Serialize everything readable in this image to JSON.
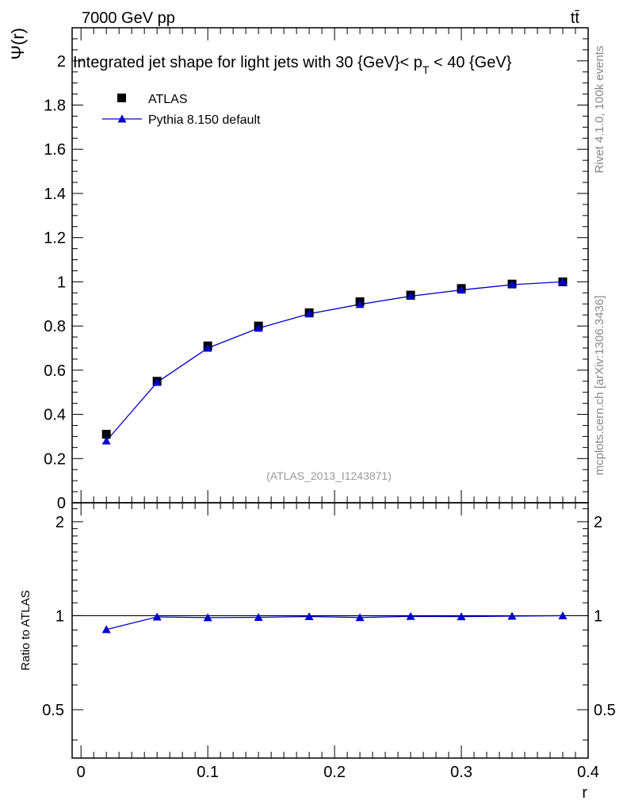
{
  "header": {
    "energy_label": "7000 GeV pp",
    "process_label": "tt̄",
    "side_label_top": "Rivet 4.1.0,  100k events",
    "side_label_bottom": "mcplots.cern.ch [arXiv:1306.3436]"
  },
  "chart_data": [
    {
      "type": "scatter",
      "title": "Integrated jet shape for light jets with 30 {GeV}< p_T < 40 {GeV}",
      "title_main": "Integrated jet shape for light jets with 30 {GeV}< p",
      "title_sub": "T",
      "title_tail": " < 40 {GeV}",
      "ylabel": "Ψ(r)",
      "xlabel": "r",
      "xlim": [
        -0.007,
        0.4
      ],
      "ylim": [
        0,
        2.15
      ],
      "x_ticks": [
        0,
        0.1,
        0.2,
        0.3,
        0.4
      ],
      "x_tick_labels": [
        "0",
        "0.1",
        "0.2",
        "0.3",
        "0.4"
      ],
      "y_ticks": [
        0,
        0.2,
        0.4,
        0.6,
        0.8,
        1,
        1.2,
        1.4,
        1.6,
        1.8,
        2
      ],
      "y_tick_labels": [
        "0",
        "0.2",
        "0.4",
        "0.6",
        "0.8",
        "1",
        "1.2",
        "1.4",
        "1.6",
        "1.8",
        "2"
      ],
      "watermark": "(ATLAS_2013_I1243871)",
      "legend_position": "top-left",
      "series": [
        {
          "name": "ATLAS",
          "marker": "square",
          "color": "#000000",
          "x": [
            0.02,
            0.06,
            0.1,
            0.14,
            0.18,
            0.22,
            0.26,
            0.3,
            0.34,
            0.38
          ],
          "values": [
            0.31,
            0.55,
            0.71,
            0.8,
            0.86,
            0.91,
            0.94,
            0.97,
            0.99,
            1.0
          ]
        },
        {
          "name": "Pythia 8.150 default",
          "marker": "triangle",
          "line": true,
          "color": "#0000cc",
          "x": [
            0.02,
            0.06,
            0.1,
            0.14,
            0.18,
            0.22,
            0.26,
            0.3,
            0.34,
            0.38
          ],
          "values": [
            0.28,
            0.545,
            0.7,
            0.79,
            0.855,
            0.898,
            0.935,
            0.963,
            0.987,
            1.0
          ]
        }
      ]
    },
    {
      "type": "line",
      "title": "",
      "ylabel": "Ratio to ATLAS",
      "xlabel": "r",
      "xlim": [
        -0.007,
        0.4
      ],
      "ylim": [
        0.35,
        2.3
      ],
      "y_scale": "log",
      "y_ticks": [
        0.5,
        1,
        2
      ],
      "y_tick_labels": [
        "0.5",
        "1",
        "2"
      ],
      "reference_line": 1,
      "series": [
        {
          "name": "Pythia 8.150 default",
          "marker": "triangle",
          "color": "#0000cc",
          "x": [
            0.02,
            0.06,
            0.1,
            0.14,
            0.18,
            0.22,
            0.26,
            0.3,
            0.34,
            0.38
          ],
          "values": [
            0.903,
            0.991,
            0.986,
            0.988,
            0.994,
            0.987,
            0.995,
            0.993,
            0.997,
            1.0
          ]
        }
      ]
    }
  ]
}
